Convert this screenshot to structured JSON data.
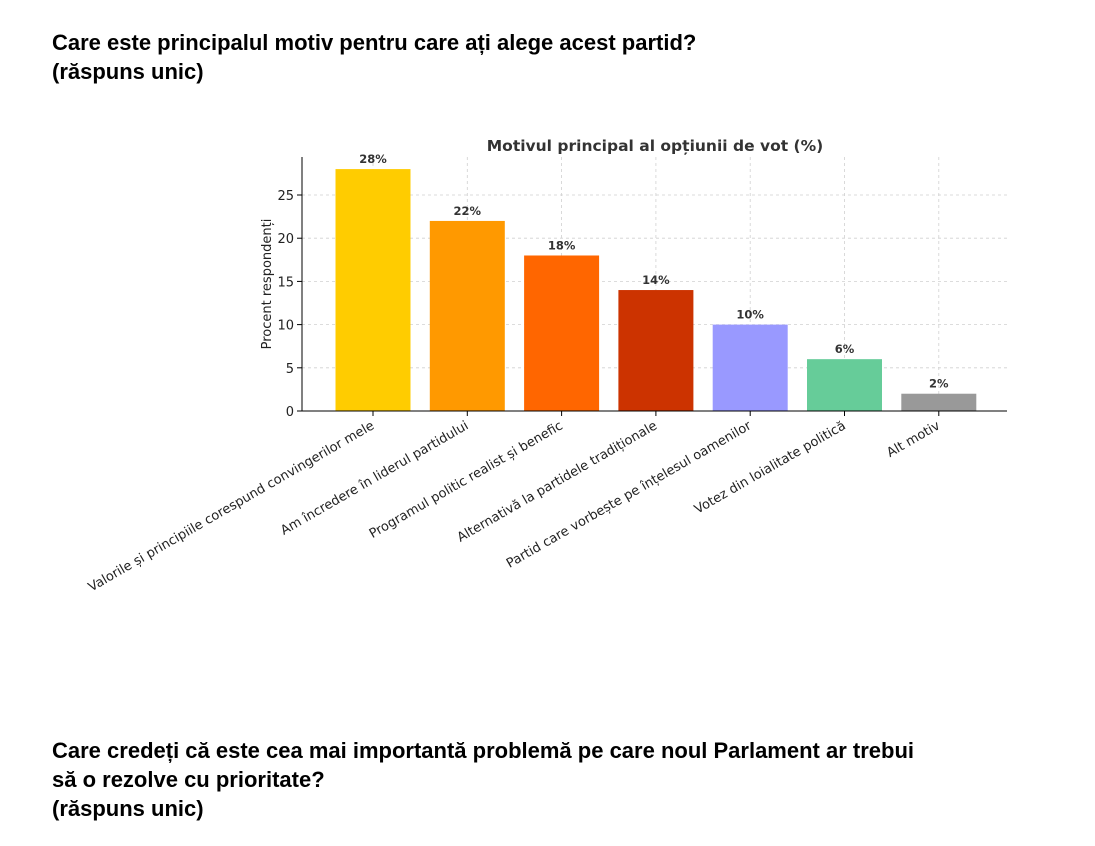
{
  "questions": [
    {
      "line1": "Care este principalul motiv pentru care ați alege acest partid?",
      "line2": "(răspuns unic)"
    },
    {
      "line1": "Care credeți că este cea mai importantă problemă pe care noul Parlament ar trebui",
      "line2": "să o rezolve cu prioritate?",
      "line3": "(răspuns unic)"
    }
  ],
  "chart_data": {
    "type": "bar",
    "title": "Motivul principal al opțiunii de vot (%)",
    "xlabel": "",
    "ylabel": "Procent respondenți",
    "ylim": [
      0,
      29.4
    ],
    "yticks": [
      0,
      5,
      10,
      15,
      20,
      25
    ],
    "grid": true,
    "categories": [
      "Valorile și principiile corespund convingerilor mele",
      "Am încredere în liderul partidului",
      "Programul politic realist și benefic",
      "Alternativă la partidele tradiționale",
      "Partid care vorbește pe înțelesul oamenilor",
      "Votez din loialitate politică",
      "Alt motiv"
    ],
    "values": [
      28,
      22,
      18,
      14,
      10,
      6,
      2
    ],
    "data_labels": [
      "28%",
      "22%",
      "18%",
      "14%",
      "10%",
      "6%",
      "2%"
    ],
    "colors": [
      "#FFCC00",
      "#FF9900",
      "#FF6600",
      "#CC3300",
      "#9999FF",
      "#66CC99",
      "#999999"
    ]
  }
}
